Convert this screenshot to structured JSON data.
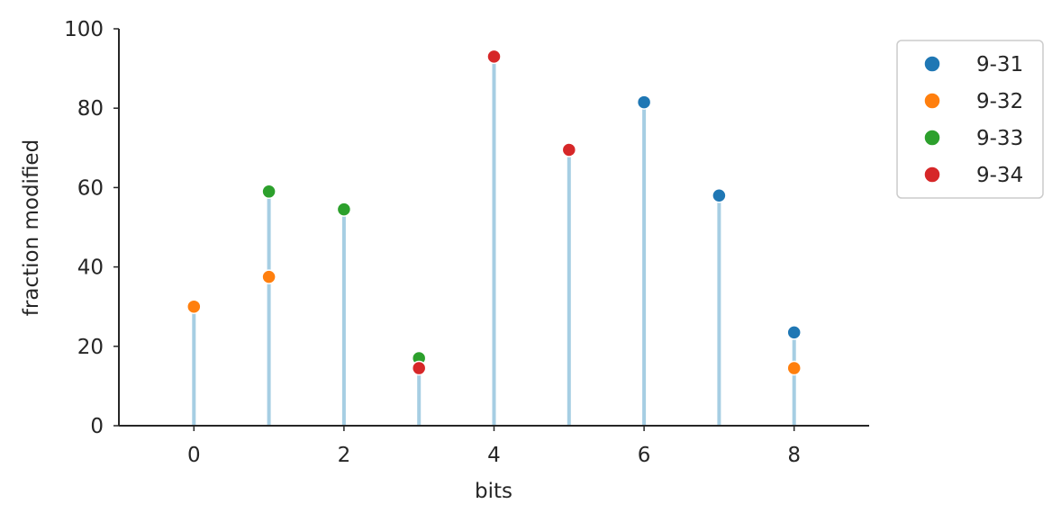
{
  "chart_data": {
    "type": "scatter",
    "xlabel": "bits",
    "ylabel": "fraction modified",
    "xlim": [
      -1,
      9
    ],
    "ylim": [
      0,
      100
    ],
    "x_ticks": [
      0,
      2,
      4,
      6,
      8
    ],
    "y_ticks": [
      0,
      20,
      40,
      60,
      80,
      100
    ],
    "grid": false,
    "legend_position": "outside-top-right",
    "stem_color": "#a6cee3",
    "stems": [
      {
        "x": 0,
        "y": 30
      },
      {
        "x": 1,
        "y": 59
      },
      {
        "x": 2,
        "y": 54.5
      },
      {
        "x": 3,
        "y": 17
      },
      {
        "x": 4,
        "y": 93
      },
      {
        "x": 5,
        "y": 69.5
      },
      {
        "x": 6,
        "y": 81.5
      },
      {
        "x": 7,
        "y": 58
      },
      {
        "x": 8,
        "y": 23.5
      }
    ],
    "series": [
      {
        "name": "9-31",
        "color": "#1f77b4",
        "points": [
          {
            "x": 6,
            "y": 81.5
          },
          {
            "x": 7,
            "y": 58
          },
          {
            "x": 8,
            "y": 23.5
          }
        ]
      },
      {
        "name": "9-32",
        "color": "#ff7f0e",
        "points": [
          {
            "x": 0,
            "y": 30
          },
          {
            "x": 1,
            "y": 37.5
          },
          {
            "x": 8,
            "y": 14.5
          }
        ]
      },
      {
        "name": "9-33",
        "color": "#2ca02c",
        "points": [
          {
            "x": 1,
            "y": 59
          },
          {
            "x": 2,
            "y": 54.5
          },
          {
            "x": 3,
            "y": 17
          }
        ]
      },
      {
        "name": "9-34",
        "color": "#d62728",
        "points": [
          {
            "x": 3,
            "y": 14.5
          },
          {
            "x": 4,
            "y": 93
          },
          {
            "x": 5,
            "y": 69.5
          }
        ]
      }
    ]
  }
}
